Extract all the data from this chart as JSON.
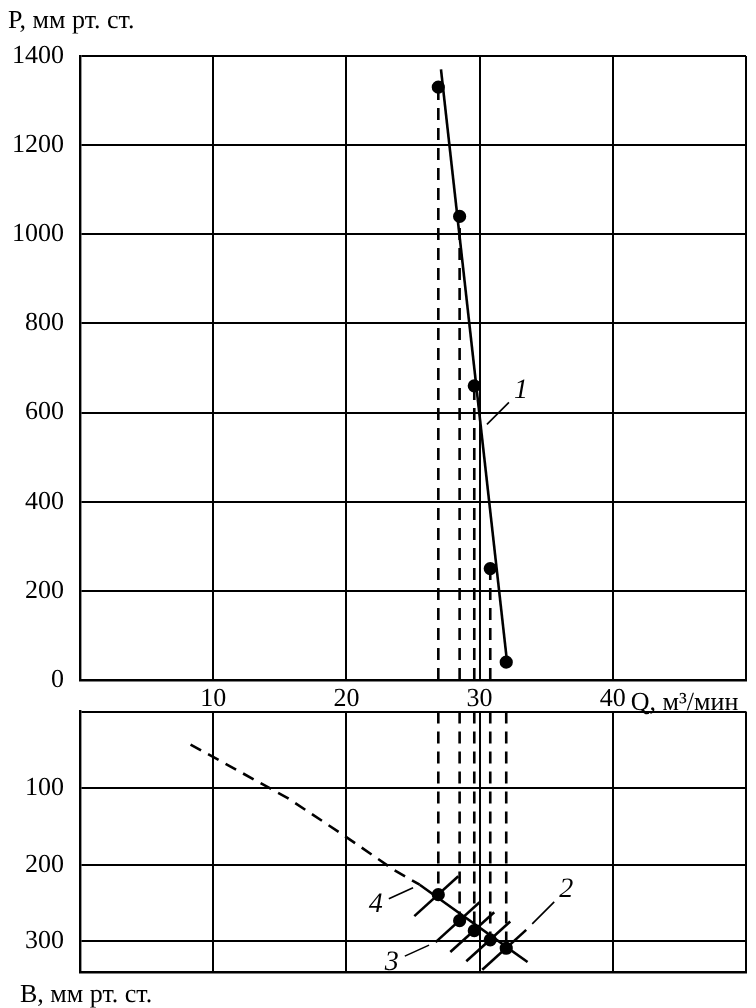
{
  "chart_data": [
    {
      "type": "line",
      "xlabel": "Q, м³/мин",
      "ylabel": "P, мм рт. ст.",
      "xlim": [
        0,
        50
      ],
      "xticks": [
        {
          "value": 0,
          "label": null
        },
        10,
        20,
        30,
        40,
        {
          "value": 50,
          "label": null
        }
      ],
      "ylim": [
        0,
        1400
      ],
      "yticks": [
        0,
        200,
        400,
        600,
        800,
        1000,
        1200,
        1400
      ],
      "grid": true,
      "annotations": [
        {
          "text": "1",
          "x": 30.1,
          "y": 560
        }
      ],
      "series": [
        {
          "type": "line",
          "color": "#000000",
          "line_style": "solid",
          "x": [
            27.1,
            32.1
          ],
          "values": [
            1370,
            30
          ]
        },
        {
          "type": "scatter",
          "color": "#000000",
          "marker": "circle",
          "x": [
            26.9,
            28.5,
            29.6,
            30.8,
            32.0
          ],
          "values": [
            1330,
            1040,
            660,
            250,
            40
          ]
        },
        {
          "type": "line",
          "color": "#000000",
          "line_style": "dashed",
          "x": [
            26.9,
            26.9
          ],
          "values": [
            0,
            1330
          ]
        },
        {
          "type": "line",
          "color": "#000000",
          "line_style": "dashed",
          "x": [
            28.5,
            28.5
          ],
          "values": [
            0,
            1040
          ]
        },
        {
          "type": "line",
          "color": "#000000",
          "line_style": "dashed",
          "x": [
            29.6,
            29.6
          ],
          "values": [
            0,
            660
          ]
        },
        {
          "type": "line",
          "color": "#000000",
          "line_style": "dashed",
          "x": [
            30.8,
            30.8
          ],
          "values": [
            0,
            250
          ]
        }
      ]
    },
    {
      "type": "line",
      "ylabel": "B, мм рт. ст.",
      "xlim": [
        0,
        50
      ],
      "xticks": [
        0,
        10,
        20,
        30,
        40,
        50
      ],
      "ylim": [
        340,
        0
      ],
      "yticks": [
        {
          "value": 0,
          "label": null
        },
        100,
        200,
        300
      ],
      "grid": true,
      "tick_labels": "y",
      "annotations": [
        {
          "text": "4",
          "x": 25.5,
          "y": 226
        },
        {
          "text": "3",
          "x": 26.7,
          "y": 301
        },
        {
          "text": "2",
          "x": 33.5,
          "y": 285
        }
      ],
      "series": [
        {
          "type": "line",
          "color": "#000000",
          "line_style": "dashed",
          "x": [
            8.3,
            15.6,
            19.5,
            23.6,
            25.5
          ],
          "values": [
            43,
            113,
            158,
            207,
            226
          ]
        },
        {
          "type": "line",
          "color": "#000000",
          "line_style": "solid",
          "x": [
            25.5,
            33.6
          ],
          "values": [
            226,
            327
          ]
        },
        {
          "type": "scatter",
          "color": "#000000",
          "marker": "circle",
          "x": [
            26.9,
            28.5,
            29.6,
            30.8,
            32.0
          ],
          "values": [
            239,
            273,
            286,
            298,
            309
          ]
        },
        {
          "type": "line",
          "color": "#000000",
          "line_style": "solid",
          "x": [
            25.1,
            28.4
          ],
          "values": [
            267,
            215
          ]
        },
        {
          "type": "line",
          "color": "#000000",
          "line_style": "solid",
          "x": [
            26.7,
            30.0
          ],
          "values": [
            301,
            249
          ]
        },
        {
          "type": "line",
          "color": "#000000",
          "line_style": "solid",
          "x": [
            27.8,
            31.1
          ],
          "values": [
            314,
            262
          ]
        },
        {
          "type": "line",
          "color": "#000000",
          "line_style": "solid",
          "x": [
            29.0,
            32.3
          ],
          "values": [
            326,
            274
          ]
        },
        {
          "type": "line",
          "color": "#000000",
          "line_style": "solid",
          "x": [
            30.2,
            33.5
          ],
          "values": [
            337,
            285
          ]
        },
        {
          "type": "line",
          "color": "#000000",
          "line_style": "dashed",
          "x": [
            26.9,
            26.9
          ],
          "values": [
            0,
            239
          ]
        },
        {
          "type": "line",
          "color": "#000000",
          "line_style": "dashed",
          "x": [
            28.5,
            28.5
          ],
          "values": [
            0,
            273
          ]
        },
        {
          "type": "line",
          "color": "#000000",
          "line_style": "dashed",
          "x": [
            29.6,
            29.6
          ],
          "values": [
            0,
            286
          ]
        },
        {
          "type": "line",
          "color": "#000000",
          "line_style": "dashed",
          "x": [
            30.8,
            30.8
          ],
          "values": [
            0,
            298
          ]
        },
        {
          "type": "line",
          "color": "#000000",
          "line_style": "dashed",
          "x": [
            32.0,
            32.0
          ],
          "values": [
            0,
            309
          ]
        }
      ]
    }
  ]
}
